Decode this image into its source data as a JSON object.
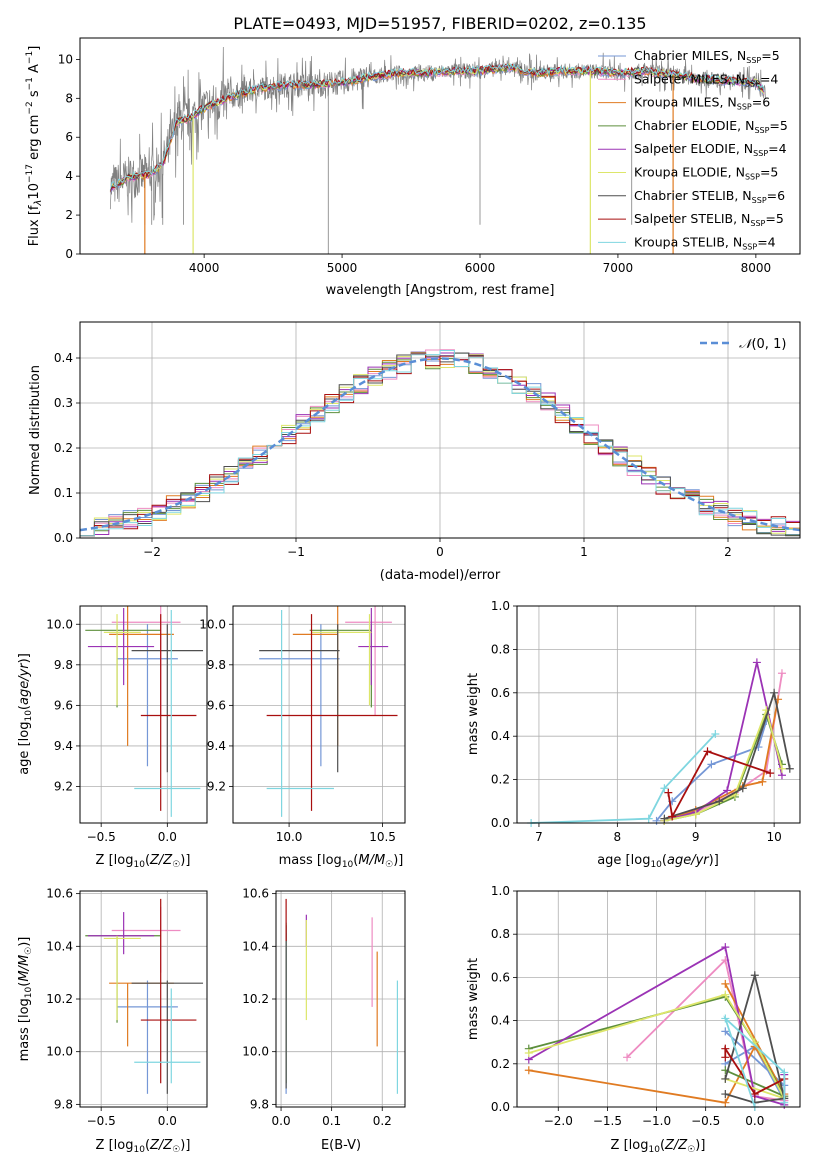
{
  "figure": {
    "title": "PLATE=0493, MJD=51957, FIBERID=0202, z=0.135"
  },
  "colors": {
    "Chabrier MILES": "#7597d6",
    "Salpeter MILES": "#ee8cc2",
    "Kroupa MILES": "#e07b22",
    "Chabrier ELODIE": "#5d8f3c",
    "Salpeter ELODIE": "#9b33b5",
    "Kroupa ELODIE": "#dde66a",
    "Chabrier STELIB": "#4f4f4f",
    "Salpeter STELIB": "#a80f0f",
    "Kroupa STELIB": "#7fd6e0",
    "data": "#808080",
    "normal": "#5a8ed6"
  },
  "chart_data": [
    {
      "id": "spectrum",
      "type": "line",
      "title": "PLATE=0493, MJD=51957, FIBERID=0202, z=0.135",
      "xlabel": "wavelength [Angstrom, rest frame]",
      "ylabel": "Flux [fλ10⁻¹⁷ erg cm⁻² s⁻¹ A⁻¹]",
      "xlim": [
        3100,
        8320
      ],
      "ylim": [
        0,
        11.1
      ],
      "xticks": [
        4000,
        5000,
        6000,
        7000,
        8000
      ],
      "yticks": [
        0,
        2,
        4,
        6,
        8,
        10
      ],
      "grid": false,
      "legend_position": "right",
      "series": [
        {
          "name": "Chabrier MILES, N_SSP=5",
          "label_main": "Chabrier MILES, N",
          "label_sub": "SSP",
          "label_tail": "=5",
          "key": "Chabrier MILES"
        },
        {
          "name": "Salpeter MILES, N_SSP=4",
          "label_main": "Salpeter MILES, N",
          "label_sub": "SSP",
          "label_tail": "=4",
          "key": "Salpeter MILES"
        },
        {
          "name": "Kroupa MILES, N_SSP=6",
          "label_main": "Kroupa MILES, N",
          "label_sub": "SSP",
          "label_tail": "=6",
          "key": "Kroupa MILES"
        },
        {
          "name": "Chabrier ELODIE, N_SSP=5",
          "label_main": "Chabrier ELODIE, N",
          "label_sub": "SSP",
          "label_tail": "=5",
          "key": "Chabrier ELODIE"
        },
        {
          "name": "Salpeter ELODIE, N_SSP=4",
          "label_main": "Salpeter ELODIE, N",
          "label_sub": "SSP",
          "label_tail": "=4",
          "key": "Salpeter ELODIE"
        },
        {
          "name": "Kroupa ELODIE, N_SSP=5",
          "label_main": "Kroupa ELODIE, N",
          "label_sub": "SSP",
          "label_tail": "=5",
          "key": "Kroupa ELODIE"
        },
        {
          "name": "Chabrier STELIB, N_SSP=6",
          "label_main": "Chabrier STELIB, N",
          "label_sub": "SSP",
          "label_tail": "=6",
          "key": "Chabrier STELIB"
        },
        {
          "name": "Salpeter STELIB, N_SSP=5",
          "label_main": "Salpeter STELIB, N",
          "label_sub": "SSP",
          "label_tail": "=5",
          "key": "Salpeter STELIB"
        },
        {
          "name": "Kroupa STELIB, N_SSP=4",
          "label_main": "Kroupa STELIB, N",
          "label_sub": "SSP",
          "label_tail": "=4",
          "key": "Kroupa STELIB"
        }
      ],
      "continuum": {
        "wavelength": [
          3320,
          3450,
          3600,
          3700,
          3800,
          3900,
          4000,
          4200,
          4400,
          4600,
          4800,
          5000,
          5200,
          5400,
          5600,
          5800,
          6000,
          6200,
          6400,
          6600,
          6800,
          7000,
          7200,
          7400,
          7600,
          7800,
          8000,
          8070
        ],
        "flux": [
          3.4,
          3.9,
          4.1,
          4.6,
          6.8,
          7.0,
          7.5,
          8.1,
          8.5,
          8.7,
          8.7,
          8.8,
          9.1,
          9.3,
          9.3,
          9.4,
          9.4,
          9.6,
          9.3,
          9.4,
          9.4,
          9.3,
          9.4,
          9.2,
          9.0,
          8.9,
          8.8,
          8.3
        ]
      },
      "dropouts": [
        {
          "wavelength": 3570,
          "key": "Kroupa MILES"
        },
        {
          "wavelength": 3920,
          "key": "Kroupa ELODIE"
        },
        {
          "wavelength": 6800,
          "key": "Kroupa ELODIE"
        },
        {
          "wavelength": 7400,
          "key": "Kroupa MILES"
        }
      ]
    },
    {
      "id": "residuals",
      "type": "bar",
      "xlabel": "(data-model)/error",
      "ylabel": "Normed distribution",
      "xlim": [
        -2.5,
        2.5
      ],
      "ylim": [
        0,
        0.48
      ],
      "xticks": [
        -2,
        -1,
        0,
        1,
        2
      ],
      "xtick_labels": [
        "−2",
        "−1",
        "0",
        "1",
        "2"
      ],
      "yticks": [
        0.0,
        0.1,
        0.2,
        0.3,
        0.4
      ],
      "grid": true,
      "legend_position": "top-right",
      "normal_label": "𝒩(0, 1)",
      "normal_label_pre": "𝒩",
      "normal_label_args": "(0, 1)",
      "bin_edges": [
        -2.5,
        -2.4,
        -2.3,
        -2.2,
        -2.1,
        -2.0,
        -1.9,
        -1.8,
        -1.7,
        -1.6,
        -1.5,
        -1.4,
        -1.3,
        -1.2,
        -1.1,
        -1.0,
        -0.9,
        -0.8,
        -0.7,
        -0.6,
        -0.5,
        -0.4,
        -0.3,
        -0.2,
        -0.1,
        0.0,
        0.1,
        0.2,
        0.3,
        0.4,
        0.5,
        0.6,
        0.7,
        0.8,
        0.9,
        1.0,
        1.1,
        1.2,
        1.3,
        1.4,
        1.5,
        1.6,
        1.7,
        1.8,
        1.9,
        2.0,
        2.1,
        2.2,
        2.3,
        2.4,
        2.5
      ]
    },
    {
      "id": "Z-age",
      "type": "scatter",
      "xlabel": "Z [log₁₀(Z/Z☉)]",
      "ylabel": "age  [log₁₀(age/yr)]",
      "xlim": [
        -0.66,
        0.3
      ],
      "ylim": [
        9.02,
        10.09
      ],
      "xticks": [
        -0.5,
        0.0
      ],
      "xtick_labels": [
        "−0.5",
        "0.0"
      ],
      "yticks": [
        9.2,
        9.4,
        9.6,
        9.8,
        10.0
      ],
      "grid": true
    },
    {
      "id": "mass-age",
      "type": "scatter",
      "xlabel": "mass [log₁₀(M/M☉)]",
      "ylabel": "",
      "xlim": [
        9.7,
        10.62
      ],
      "ylim": [
        9.02,
        10.09
      ],
      "xticks": [
        10.0,
        10.5
      ],
      "xtick_labels": [
        "10.0",
        "10.5"
      ],
      "yticks": [
        9.2,
        9.4,
        9.6,
        9.8,
        10.0
      ],
      "grid": true
    },
    {
      "id": "age-weight",
      "type": "line",
      "xlabel": "age  [log₁₀(age/yr)]",
      "ylabel": "mass weight",
      "xlim": [
        6.72,
        10.33
      ],
      "ylim": [
        0,
        1.0
      ],
      "xticks": [
        7,
        8,
        9,
        10
      ],
      "yticks": [
        0.0,
        0.2,
        0.4,
        0.6,
        0.8,
        1.0
      ],
      "grid": true
    },
    {
      "id": "Z-mass",
      "type": "scatter",
      "xlabel": "Z [log₁₀(Z/Z☉)]",
      "ylabel": "mass [log₁₀(M/M☉)]",
      "xlim": [
        -0.66,
        0.3
      ],
      "ylim": [
        9.79,
        10.61
      ],
      "xticks": [
        -0.5,
        0.0
      ],
      "xtick_labels": [
        "−0.5",
        "0.0"
      ],
      "yticks": [
        9.8,
        10.0,
        10.2,
        10.4,
        10.6
      ],
      "grid": true
    },
    {
      "id": "ebv-mass",
      "type": "scatter",
      "xlabel": "E(B-V)",
      "ylabel": "",
      "xlim": [
        -0.01,
        0.245
      ],
      "ylim": [
        9.79,
        10.61
      ],
      "xticks": [
        0.0,
        0.1,
        0.2
      ],
      "xtick_labels": [
        "0.0",
        "0.1",
        "0.2"
      ],
      "yticks": [
        9.8,
        10.0,
        10.2,
        10.4,
        10.6
      ],
      "grid": true
    },
    {
      "id": "Z-weight",
      "type": "line",
      "xlabel": "Z [log₁₀(Z/Z☉)]",
      "ylabel": "mass weight",
      "xlim": [
        -2.42,
        0.46
      ],
      "ylim": [
        0,
        1.0
      ],
      "xticks": [
        -2.0,
        -1.5,
        -1.0,
        -0.5,
        0.0
      ],
      "xtick_labels": [
        "−2.0",
        "−1.5",
        "−1.0",
        "−0.5",
        "0.0"
      ],
      "yticks": [
        0.0,
        0.2,
        0.4,
        0.6,
        0.8,
        1.0
      ],
      "grid": true
    }
  ],
  "fits": [
    {
      "key": "Chabrier MILES",
      "Z": -0.15,
      "Z_lo": -0.38,
      "Z_hi": 0.08,
      "age": 9.83,
      "age_lo": 9.3,
      "age_hi": 10.0,
      "mass": 10.17,
      "mass_lo": 9.84,
      "mass_hi": 10.27,
      "ebv": 0.01,
      "ebv_lo": 9.84,
      "ebv_hi": 10.45,
      "age_w": [
        [
          8.5,
          0.01
        ],
        [
          8.7,
          0.1
        ],
        [
          9.2,
          0.27
        ],
        [
          9.8,
          0.35
        ],
        [
          9.9,
          0.47
        ]
      ],
      "Z_w": [
        [
          -0.3,
          0.2
        ],
        [
          0.0,
          0.28
        ],
        [
          0.3,
          0.03
        ],
        [
          0.3,
          0.1
        ],
        [
          -0.3,
          0.35
        ]
      ]
    },
    {
      "key": "Salpeter MILES",
      "Z": -0.05,
      "Z_lo": -0.42,
      "Z_hi": 0.1,
      "age": 10.01,
      "age_lo": 9.55,
      "age_hi": 10.09,
      "mass": 10.46,
      "mass_lo": 10.3,
      "mass_hi": 10.55,
      "ebv": 0.18,
      "ebv_lo": 10.17,
      "ebv_hi": 10.51,
      "age_w": [
        [
          8.6,
          0.01
        ],
        [
          9.0,
          0.05
        ],
        [
          9.5,
          0.14
        ],
        [
          9.9,
          0.24
        ],
        [
          10.1,
          0.69
        ]
      ],
      "Z_w": [
        [
          -1.3,
          0.23
        ],
        [
          -0.3,
          0.68
        ],
        [
          0.0,
          0.05
        ],
        [
          0.3,
          0.03
        ],
        [
          0.3,
          0.05
        ]
      ]
    },
    {
      "key": "Kroupa MILES",
      "Z": -0.3,
      "Z_lo": -0.44,
      "Z_hi": 0.05,
      "age": 9.95,
      "age_lo": 9.4,
      "age_hi": 10.11,
      "mass": 10.26,
      "mass_lo": 10.02,
      "mass_hi": 10.26,
      "ebv": 0.19,
      "ebv_lo": 10.02,
      "ebv_hi": 10.38,
      "age_w": [
        [
          8.6,
          0.01
        ],
        [
          9.0,
          0.06
        ],
        [
          9.6,
          0.17
        ],
        [
          9.85,
          0.19
        ],
        [
          10.05,
          0.57
        ]
      ],
      "Z_w": [
        [
          -2.3,
          0.17
        ],
        [
          -0.3,
          0.02
        ],
        [
          0.0,
          0.28
        ],
        [
          0.3,
          0.06
        ],
        [
          -0.3,
          0.57
        ]
      ]
    },
    {
      "key": "Chabrier ELODIE",
      "Z": -0.38,
      "Z_lo": -0.62,
      "Z_hi": -0.05,
      "age": 9.97,
      "age_lo": 9.59,
      "age_hi": 10.0,
      "mass": 10.44,
      "mass_lo": 10.11,
      "mass_hi": 10.44,
      "ebv": 0.01,
      "ebv_lo": 9.88,
      "ebv_hi": 10.49,
      "age_w": [
        [
          8.6,
          0.01
        ],
        [
          9.0,
          0.04
        ],
        [
          9.5,
          0.12
        ],
        [
          9.9,
          0.5
        ],
        [
          10.1,
          0.27
        ]
      ],
      "Z_w": [
        [
          -2.3,
          0.27
        ],
        [
          -0.3,
          0.51
        ],
        [
          0.0,
          0.3
        ],
        [
          0.3,
          0.05
        ],
        [
          -0.3,
          0.17
        ]
      ]
    },
    {
      "key": "Salpeter ELODIE",
      "Z": -0.33,
      "Z_lo": -0.6,
      "Z_hi": -0.1,
      "age": 9.89,
      "age_lo": 9.7,
      "age_hi": 10.08,
      "mass": 10.44,
      "mass_lo": 10.37,
      "mass_hi": 10.53,
      "ebv": 0.05,
      "ebv_lo": 10.4,
      "ebv_hi": 10.52,
      "age_w": [
        [
          8.6,
          0.01
        ],
        [
          9.0,
          0.05
        ],
        [
          9.4,
          0.15
        ],
        [
          9.78,
          0.74
        ],
        [
          10.1,
          0.22
        ]
      ],
      "Z_w": [
        [
          -2.3,
          0.22
        ],
        [
          -0.3,
          0.74
        ],
        [
          0.0,
          0.05
        ],
        [
          0.3,
          0.01
        ],
        [
          0.3,
          0.15
        ]
      ]
    },
    {
      "key": "Kroupa ELODIE",
      "Z": -0.38,
      "Z_lo": -0.48,
      "Z_hi": -0.2,
      "age": 9.96,
      "age_lo": 9.6,
      "age_hi": 10.05,
      "mass": 10.43,
      "mass_lo": 10.12,
      "mass_hi": 10.44,
      "ebv": 0.05,
      "ebv_lo": 10.12,
      "ebv_hi": 10.5,
      "age_w": [
        [
          8.6,
          0.01
        ],
        [
          9.0,
          0.04
        ],
        [
          9.5,
          0.13
        ],
        [
          9.9,
          0.52
        ],
        [
          10.1,
          0.25
        ]
      ],
      "Z_w": [
        [
          -2.3,
          0.25
        ],
        [
          -0.3,
          0.52
        ],
        [
          0.0,
          0.3
        ],
        [
          0.3,
          0.04
        ],
        [
          -0.3,
          0.13
        ]
      ]
    },
    {
      "key": "Chabrier STELIB",
      "Z": 0.0,
      "Z_lo": -0.27,
      "Z_hi": 0.27,
      "age": 9.87,
      "age_lo": 9.27,
      "age_hi": 10.0,
      "mass": 10.26,
      "mass_lo": 9.84,
      "mass_hi": 10.27,
      "ebv": 0.01,
      "ebv_lo": 9.86,
      "ebv_hi": 10.48,
      "age_w": [
        [
          8.6,
          0.02
        ],
        [
          9.3,
          0.1
        ],
        [
          9.6,
          0.16
        ],
        [
          10.0,
          0.6
        ],
        [
          10.2,
          0.25
        ]
      ],
      "Z_w": [
        [
          -0.3,
          0.13
        ],
        [
          0.0,
          0.61
        ],
        [
          0.3,
          0.04
        ],
        [
          0.0,
          0.02
        ],
        [
          -0.3,
          0.06
        ]
      ]
    },
    {
      "key": "Salpeter STELIB",
      "Z": -0.05,
      "Z_lo": -0.2,
      "Z_hi": 0.22,
      "age": 9.55,
      "age_lo": 9.08,
      "age_hi": 10.05,
      "mass": 10.12,
      "mass_lo": 9.88,
      "mass_hi": 10.58,
      "ebv": 0.01,
      "ebv_lo": 10.42,
      "ebv_hi": 10.58,
      "age_w": [
        [
          8.65,
          0.14
        ],
        [
          8.7,
          0.03
        ],
        [
          9.15,
          0.33
        ],
        [
          9.95,
          0.23
        ]
      ],
      "Z_w": [
        [
          -0.3,
          0.23
        ],
        [
          -0.3,
          0.27
        ],
        [
          0.0,
          0.06
        ],
        [
          0.3,
          0.13
        ]
      ]
    },
    {
      "key": "Kroupa STELIB",
      "Z": 0.03,
      "Z_lo": -0.25,
      "Z_hi": 0.25,
      "age": 9.19,
      "age_lo": 9.05,
      "age_hi": 10.07,
      "mass": 9.96,
      "mass_lo": 9.88,
      "mass_hi": 10.24,
      "ebv": 0.23,
      "ebv_lo": 9.84,
      "ebv_hi": 10.27,
      "age_w": [
        [
          6.9,
          0.0
        ],
        [
          8.4,
          0.02
        ],
        [
          8.6,
          0.16
        ],
        [
          9.25,
          0.41
        ]
      ],
      "Z_w": [
        [
          0.0,
          0.0
        ],
        [
          -0.3,
          0.41
        ],
        [
          0.3,
          0.16
        ],
        [
          0.3,
          0.02
        ]
      ]
    }
  ]
}
